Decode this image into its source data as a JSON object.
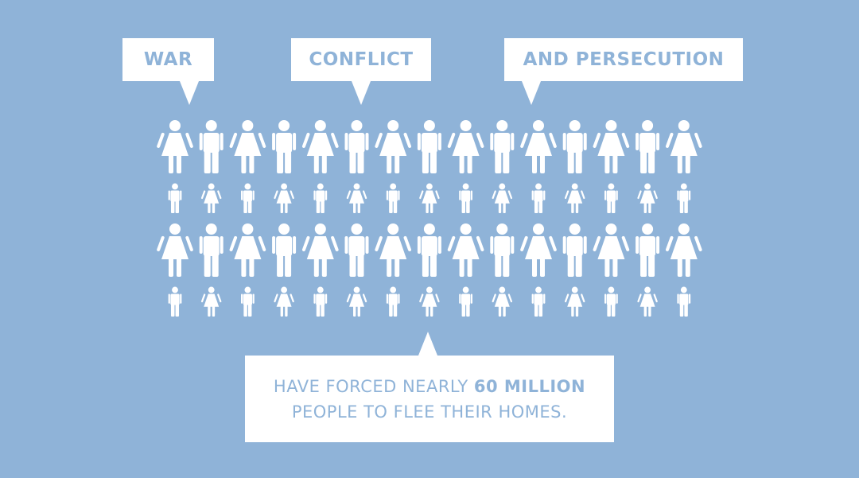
{
  "colors": {
    "background": "#8fb3d8",
    "bubble": "#ffffff",
    "text": "#8fb3d8",
    "figure": "#ffffff"
  },
  "labels": {
    "war": "WAR",
    "conflict": "CONFLICT",
    "persecution": "AND PERSECUTION"
  },
  "caption": {
    "line1_prefix": "HAVE FORCED NEARLY ",
    "line1_emphasis": "60 MILLION",
    "line2": "PEOPLE TO FLEE THEIR HOMES."
  },
  "icons": [
    "woman-icon",
    "man-icon",
    "girl-icon",
    "boy-icon"
  ]
}
